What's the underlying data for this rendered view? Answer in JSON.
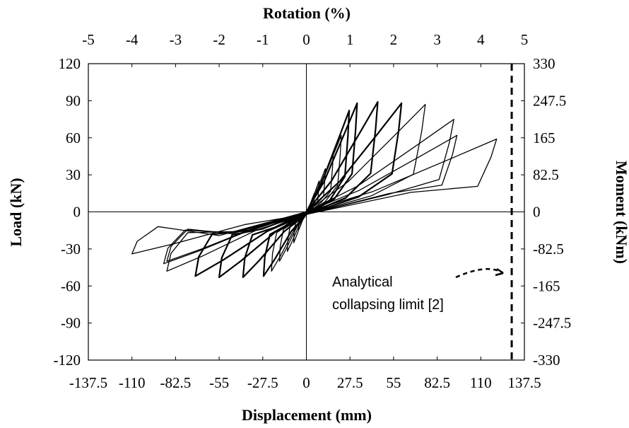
{
  "chart_data": {
    "type": "line",
    "title": "",
    "xlabel": "Displacement (mm)",
    "ylabel": "Load (kN)",
    "x2label": "Rotation (%)",
    "y2label": "Moment (kNm)",
    "xlim": [
      -137.5,
      137.5
    ],
    "ylim": [
      -120,
      120
    ],
    "x2lim": [
      -5,
      5
    ],
    "y2lim": [
      -330,
      330
    ],
    "x_ticks": [
      "-137.5",
      "-110",
      "-82.5",
      "-55",
      "-27.5",
      "0",
      "27.5",
      "55",
      "82.5",
      "110",
      "137.5"
    ],
    "y_ticks": [
      "-120",
      "-90",
      "-60",
      "-30",
      "0",
      "30",
      "60",
      "90",
      "120"
    ],
    "x2_ticks": [
      "-5",
      "-4",
      "-3",
      "-2",
      "-1",
      "0",
      "1",
      "2",
      "3",
      "4",
      "5"
    ],
    "y2_ticks": [
      "-330",
      "-247.5",
      "-165",
      "-82.5",
      "0",
      "82.5",
      "165",
      "247.5",
      "330"
    ],
    "series": [
      {
        "color": "#000000",
        "description": "Cyclic load-displacement hysteresis response",
        "cycles": [
          {
            "peak_pos": [
              5,
              15
            ],
            "peak_neg": [
              -5,
              -15
            ]
          },
          {
            "peak_pos": [
              8,
              25
            ],
            "peak_neg": [
              -8,
              -25
            ]
          },
          {
            "peak_pos": [
              12,
              35
            ],
            "peak_neg": [
              -12,
              -32
            ]
          },
          {
            "peak_pos": [
              17,
              48
            ],
            "peak_neg": [
              -17,
              -40
            ]
          },
          {
            "peak_pos": [
              22,
              62
            ],
            "peak_neg": [
              -22,
              -48
            ]
          },
          {
            "peak_pos": [
              27,
              82
            ],
            "peak_neg": [
              -27,
              -52
            ]
          },
          {
            "peak_pos": [
              32,
              88
            ],
            "peak_neg": [
              -40,
              -53
            ]
          },
          {
            "peak_pos": [
              45,
              89
            ],
            "peak_neg": [
              -55,
              -53
            ]
          },
          {
            "peak_pos": [
              60,
              88
            ],
            "peak_neg": [
              -70,
              -52
            ]
          },
          {
            "peak_pos": [
              75,
              87
            ],
            "peak_neg": [
              -88,
              -48
            ]
          },
          {
            "peak_pos": [
              93,
              75
            ],
            "peak_neg": [
              -90,
              -42
            ]
          },
          {
            "peak_pos": [
              95,
              62
            ],
            "peak_neg": [
              -88,
              -40
            ]
          },
          {
            "peak_pos": [
              120,
              59
            ],
            "peak_neg": [
              -110,
              -34
            ]
          }
        ]
      }
    ],
    "reference_line": {
      "x": 129.5,
      "style": "dashed",
      "label": "Analytical collapsing limit [2]"
    },
    "annotation": {
      "line1": "Analytical",
      "line2": "collapsing limit [2]"
    },
    "grid": false,
    "legend": "none"
  }
}
